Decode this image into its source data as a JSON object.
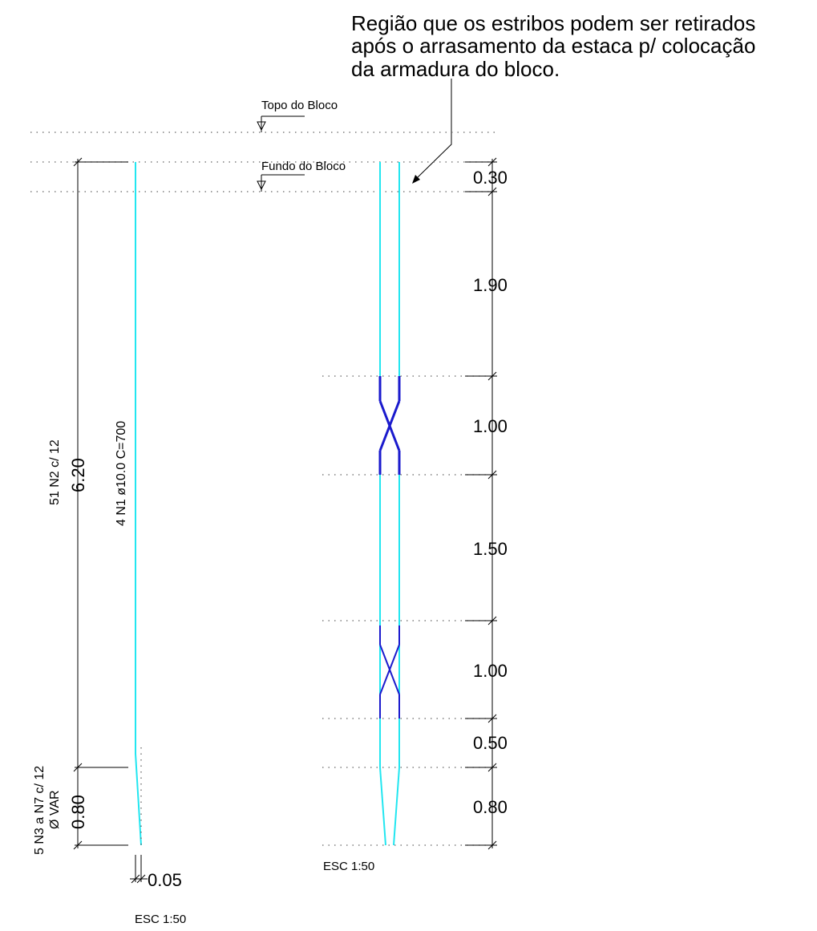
{
  "annotation": {
    "lines": [
      "Região que os estribos podem ser retirados",
      "após o arrasamento da estaca p/ colocação",
      "da armadura do bloco."
    ]
  },
  "levels": {
    "top_label": "Topo do Bloco",
    "bottom_label": "Fundo do Bloco"
  },
  "left_view": {
    "stirrups_label": "51 N2  c/ 12",
    "total_dim": "6.20",
    "bar_label": "4 N1  ø10.0 C=700",
    "tip_stirrups_label_1": "5 N3 a N7  c/ 12",
    "tip_stirrups_label_2": "Ø VAR",
    "tip_dim": "0.80",
    "offset_dim": "0.05",
    "scale": "ESC 1:50"
  },
  "right_view": {
    "dims": [
      "0.30",
      "1.90",
      "1.00",
      "1.50",
      "1.00",
      "0.50",
      "0.80"
    ],
    "scale": "ESC 1:50"
  },
  "colors": {
    "rebar": "#22e6f0",
    "splice": "#1a1acd",
    "lines": "#000000"
  }
}
